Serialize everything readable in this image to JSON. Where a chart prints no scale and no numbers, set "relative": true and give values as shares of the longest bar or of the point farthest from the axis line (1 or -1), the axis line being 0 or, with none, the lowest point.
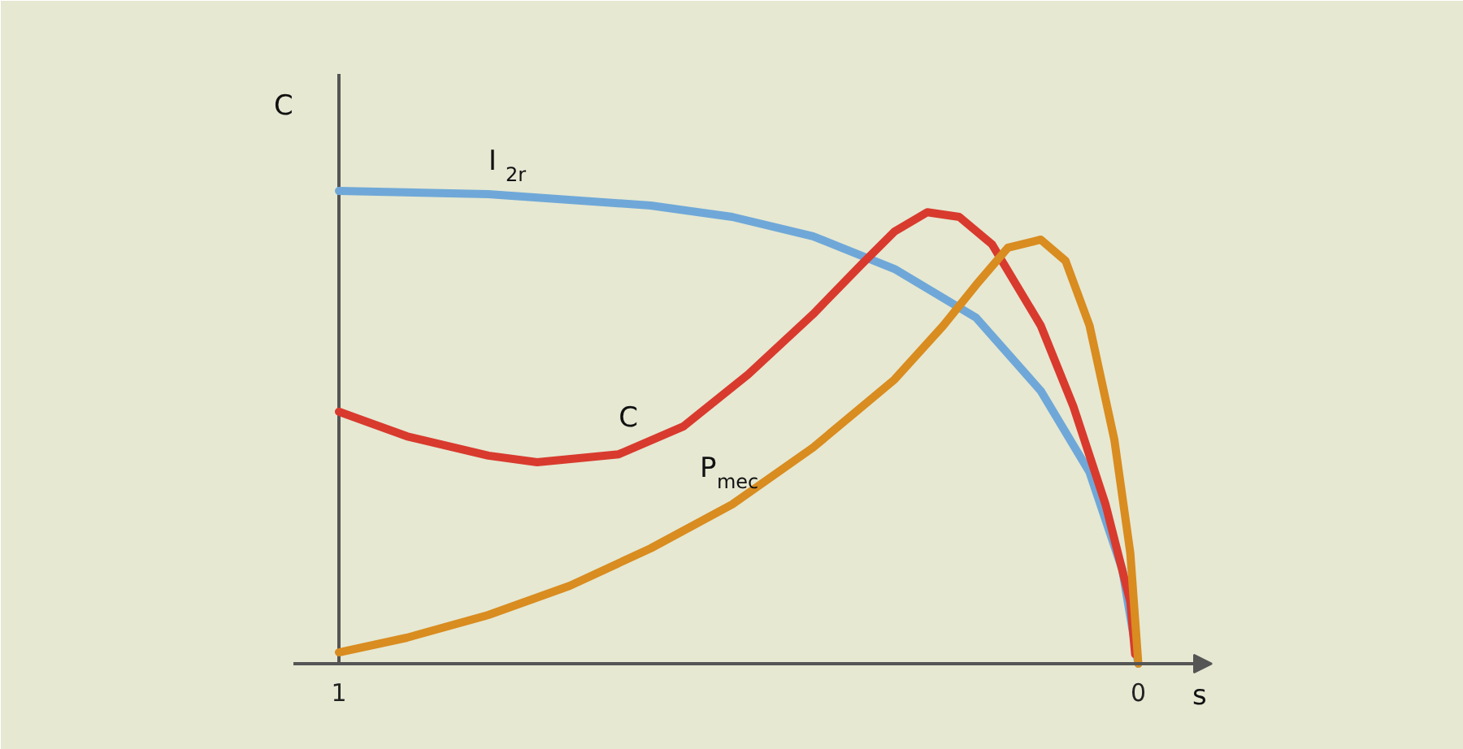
{
  "chart_data": {
    "type": "line",
    "relative": true,
    "xlabel": "s",
    "ylabel": "C",
    "xlim": [
      1,
      -0.092
    ],
    "xticks": [
      1,
      0
    ],
    "grid": false,
    "legend": false,
    "marker": "none",
    "line_style": "solid",
    "series": [
      {
        "name": "I$_{2r}$",
        "color": "#6fa8d8",
        "x": [
          1,
          0.813,
          0.61,
          0.508,
          0.407,
          0.305,
          0.203,
          0.122,
          0.061,
          0.02,
          0
        ],
        "values": [
          1,
          0.993,
          0.969,
          0.945,
          0.904,
          0.835,
          0.732,
          0.577,
          0.405,
          0.199,
          0
        ]
      },
      {
        "name": "C",
        "color": "#d93a2e",
        "x": [
          1,
          0.915,
          0.813,
          0.752,
          0.65,
          0.569,
          0.488,
          0.407,
          0.346,
          0.305,
          0.264,
          0.224,
          0.183,
          0.122,
          0.081,
          0.041,
          0.01,
          0.004
        ],
        "values": [
          0.533,
          0.481,
          0.44,
          0.426,
          0.443,
          0.502,
          0.612,
          0.739,
          0.845,
          0.914,
          0.955,
          0.945,
          0.887,
          0.715,
          0.543,
          0.337,
          0.131,
          0.02
        ]
      },
      {
        "name": "P$_{mec}$",
        "color": "#d98c1f",
        "x": [
          1,
          0.915,
          0.813,
          0.711,
          0.61,
          0.508,
          0.407,
          0.305,
          0.244,
          0.203,
          0.163,
          0.122,
          0.091,
          0.061,
          0.03,
          0.01,
          0
        ],
        "values": [
          0.024,
          0.055,
          0.103,
          0.165,
          0.244,
          0.337,
          0.457,
          0.601,
          0.715,
          0.801,
          0.88,
          0.897,
          0.852,
          0.715,
          0.474,
          0.234,
          0
        ]
      }
    ]
  }
}
